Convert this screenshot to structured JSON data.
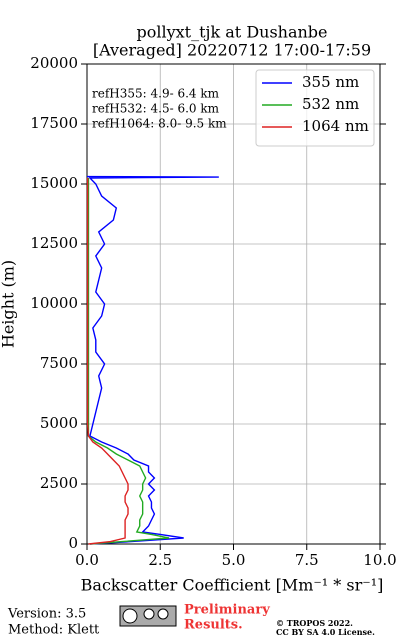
{
  "chart_data": {
    "type": "profile",
    "title": "pollyxt_tjk at Dushanbe",
    "subtitle": "[Averaged] 20220712 17:00-17:59",
    "x_label": "Backscatter Coefficient [Mm⁻¹ * sr⁻¹]",
    "y_label": "Height (m)",
    "annotations": [
      "refH355:  4.9- 6.4 km",
      "refH532:  4.5- 6.0 km",
      "refH1064:  8.0- 9.5 km"
    ],
    "heights": [
      0,
      100,
      250,
      400,
      500,
      750,
      1000,
      1250,
      1500,
      1750,
      2000,
      2250,
      2500,
      2750,
      3000,
      3250,
      3500,
      3750,
      4000,
      4250,
      4500,
      5000,
      5500,
      6000,
      6500,
      7000,
      7500,
      8000,
      8500,
      9000,
      9500,
      10000,
      10500,
      11000,
      11500,
      12000,
      12500,
      13000,
      13500,
      14000,
      14500,
      15000,
      15250,
      15290,
      15310
    ],
    "series": [
      {
        "name": "355 nm",
        "color": "#0000ff",
        "values": [
          0.1,
          1.5,
          3.3,
          2.5,
          1.9,
          2.1,
          2.2,
          2.3,
          2.2,
          2.2,
          2.1,
          2.3,
          2.1,
          2.3,
          2.1,
          2.1,
          1.6,
          1.4,
          1.0,
          0.5,
          0.1,
          0.2,
          0.3,
          0.4,
          0.5,
          0.4,
          0.6,
          0.3,
          0.3,
          0.2,
          0.5,
          0.6,
          0.3,
          0.4,
          0.5,
          0.3,
          0.6,
          0.4,
          0.9,
          1.0,
          0.5,
          0.3,
          0.1,
          4.5,
          0.0
        ]
      },
      {
        "name": "532 nm",
        "color": "#22aa22",
        "values": [
          0.1,
          1.2,
          2.8,
          2.2,
          1.7,
          1.8,
          1.8,
          1.9,
          1.9,
          1.9,
          1.8,
          1.9,
          1.9,
          2.0,
          1.9,
          1.8,
          1.4,
          1.0,
          0.7,
          0.3,
          0.05,
          0.05,
          0.05,
          0.05,
          0.05,
          0.05,
          0.05,
          0.05,
          0.05,
          0.05,
          0.05,
          0.05,
          0.05,
          0.05,
          0.05,
          0.05,
          0.05,
          0.05,
          0.05,
          0.05,
          0.05,
          0.05,
          0.05,
          null,
          null
        ]
      },
      {
        "name": "1064 nm",
        "color": "#dd2222",
        "values": [
          0.05,
          0.8,
          1.3,
          1.3,
          1.3,
          1.3,
          1.3,
          1.4,
          1.4,
          1.3,
          1.3,
          1.4,
          1.4,
          1.3,
          1.2,
          1.1,
          0.9,
          0.7,
          0.5,
          0.2,
          0.05,
          0.02,
          0.02,
          0.02,
          0.02,
          0.02,
          0.02,
          0.02,
          0.02,
          0.02,
          0.02,
          0.02,
          0.02,
          0.02,
          0.02,
          0.02,
          0.02,
          0.02,
          0.02,
          0.02,
          0.02,
          0.02,
          0.02,
          null,
          null
        ]
      }
    ],
    "xlim": [
      0,
      10
    ],
    "xticks": [
      {
        "value": 0,
        "label": "0.0"
      },
      2.5,
      {
        "value": 5,
        "label": "5.0"
      },
      7.5,
      {
        "value": 10,
        "label": "10.0"
      }
    ],
    "ylim": [
      0,
      20000
    ],
    "yticks": [
      0,
      2500,
      5000,
      7500,
      10000,
      12500,
      15000,
      17500,
      20000
    ],
    "grid": true,
    "legend": "upper right"
  },
  "footer": {
    "version": "Version: 3.5",
    "method": "Method: Klett",
    "status": [
      "Preliminary",
      "Results."
    ],
    "copyright": [
      "© TROPOS 2022.",
      "CC BY SA 4.0 License."
    ]
  }
}
